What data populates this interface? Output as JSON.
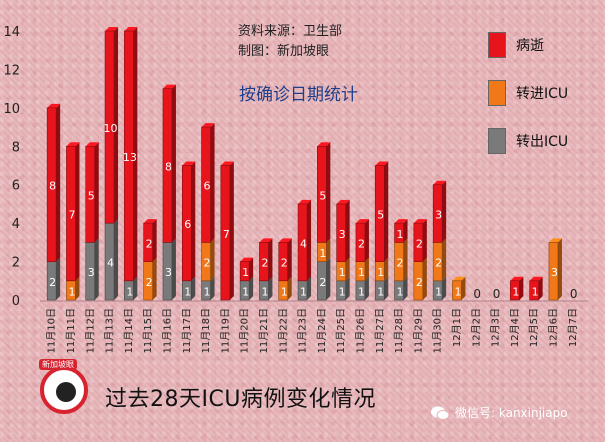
{
  "source": {
    "line1": "资料来源：卫生部",
    "line2": "制图：新加坡眼"
  },
  "subtitle": "按确诊日期统计",
  "footer_title": "过去28天ICU病例变化情况",
  "logo_text": "新加坡眼",
  "wechat": {
    "label": "微信号: kanxinjiapo"
  },
  "legend": [
    {
      "name": "病逝",
      "color": "#e8141c"
    },
    {
      "name": "转进ICU",
      "color": "#f07818"
    },
    {
      "name": "转出ICU",
      "color": "#7a7a7a"
    }
  ],
  "chart_data": {
    "type": "bar",
    "stacked": true,
    "title": "",
    "xlabel": "",
    "ylabel": "",
    "ylim": [
      0,
      14
    ],
    "yticks": [
      0,
      2,
      4,
      6,
      8,
      10,
      12,
      14
    ],
    "categories": [
      "11月10日",
      "11月11日",
      "11月12日",
      "11月13日",
      "11月14日",
      "11月15日",
      "11月16日",
      "11月17日",
      "11月18日",
      "11月19日",
      "11月20日",
      "11月21日",
      "11月22日",
      "11月23日",
      "11月24日",
      "11月25日",
      "11月26日",
      "11月27日",
      "11月28日",
      "11月29日",
      "11月30日",
      "12月1日",
      "12月2日",
      "12月3日",
      "12月4日",
      "12月5日",
      "12月6日",
      "12月7日"
    ],
    "series": [
      {
        "name": "转出ICU",
        "color": "#7a7a7a",
        "values": [
          2,
          0,
          3,
          4,
          1,
          0,
          3,
          1,
          1,
          0,
          1,
          1,
          0,
          1,
          2,
          1,
          1,
          1,
          1,
          0,
          1,
          0,
          0,
          0,
          0,
          0,
          0,
          0
        ]
      },
      {
        "name": "转进ICU",
        "color": "#f07818",
        "values": [
          0,
          1,
          0,
          0,
          0,
          2,
          0,
          0,
          2,
          0,
          0,
          0,
          1,
          0,
          1,
          1,
          1,
          1,
          2,
          2,
          2,
          1,
          0,
          0,
          0,
          0,
          3,
          0
        ]
      },
      {
        "name": "病逝",
        "color": "#e8141c",
        "values": [
          8,
          7,
          5,
          10,
          13,
          2,
          8,
          6,
          6,
          7,
          1,
          2,
          2,
          4,
          5,
          3,
          2,
          5,
          1,
          2,
          3,
          0,
          0,
          0,
          1,
          1,
          0,
          0
        ]
      }
    ]
  }
}
